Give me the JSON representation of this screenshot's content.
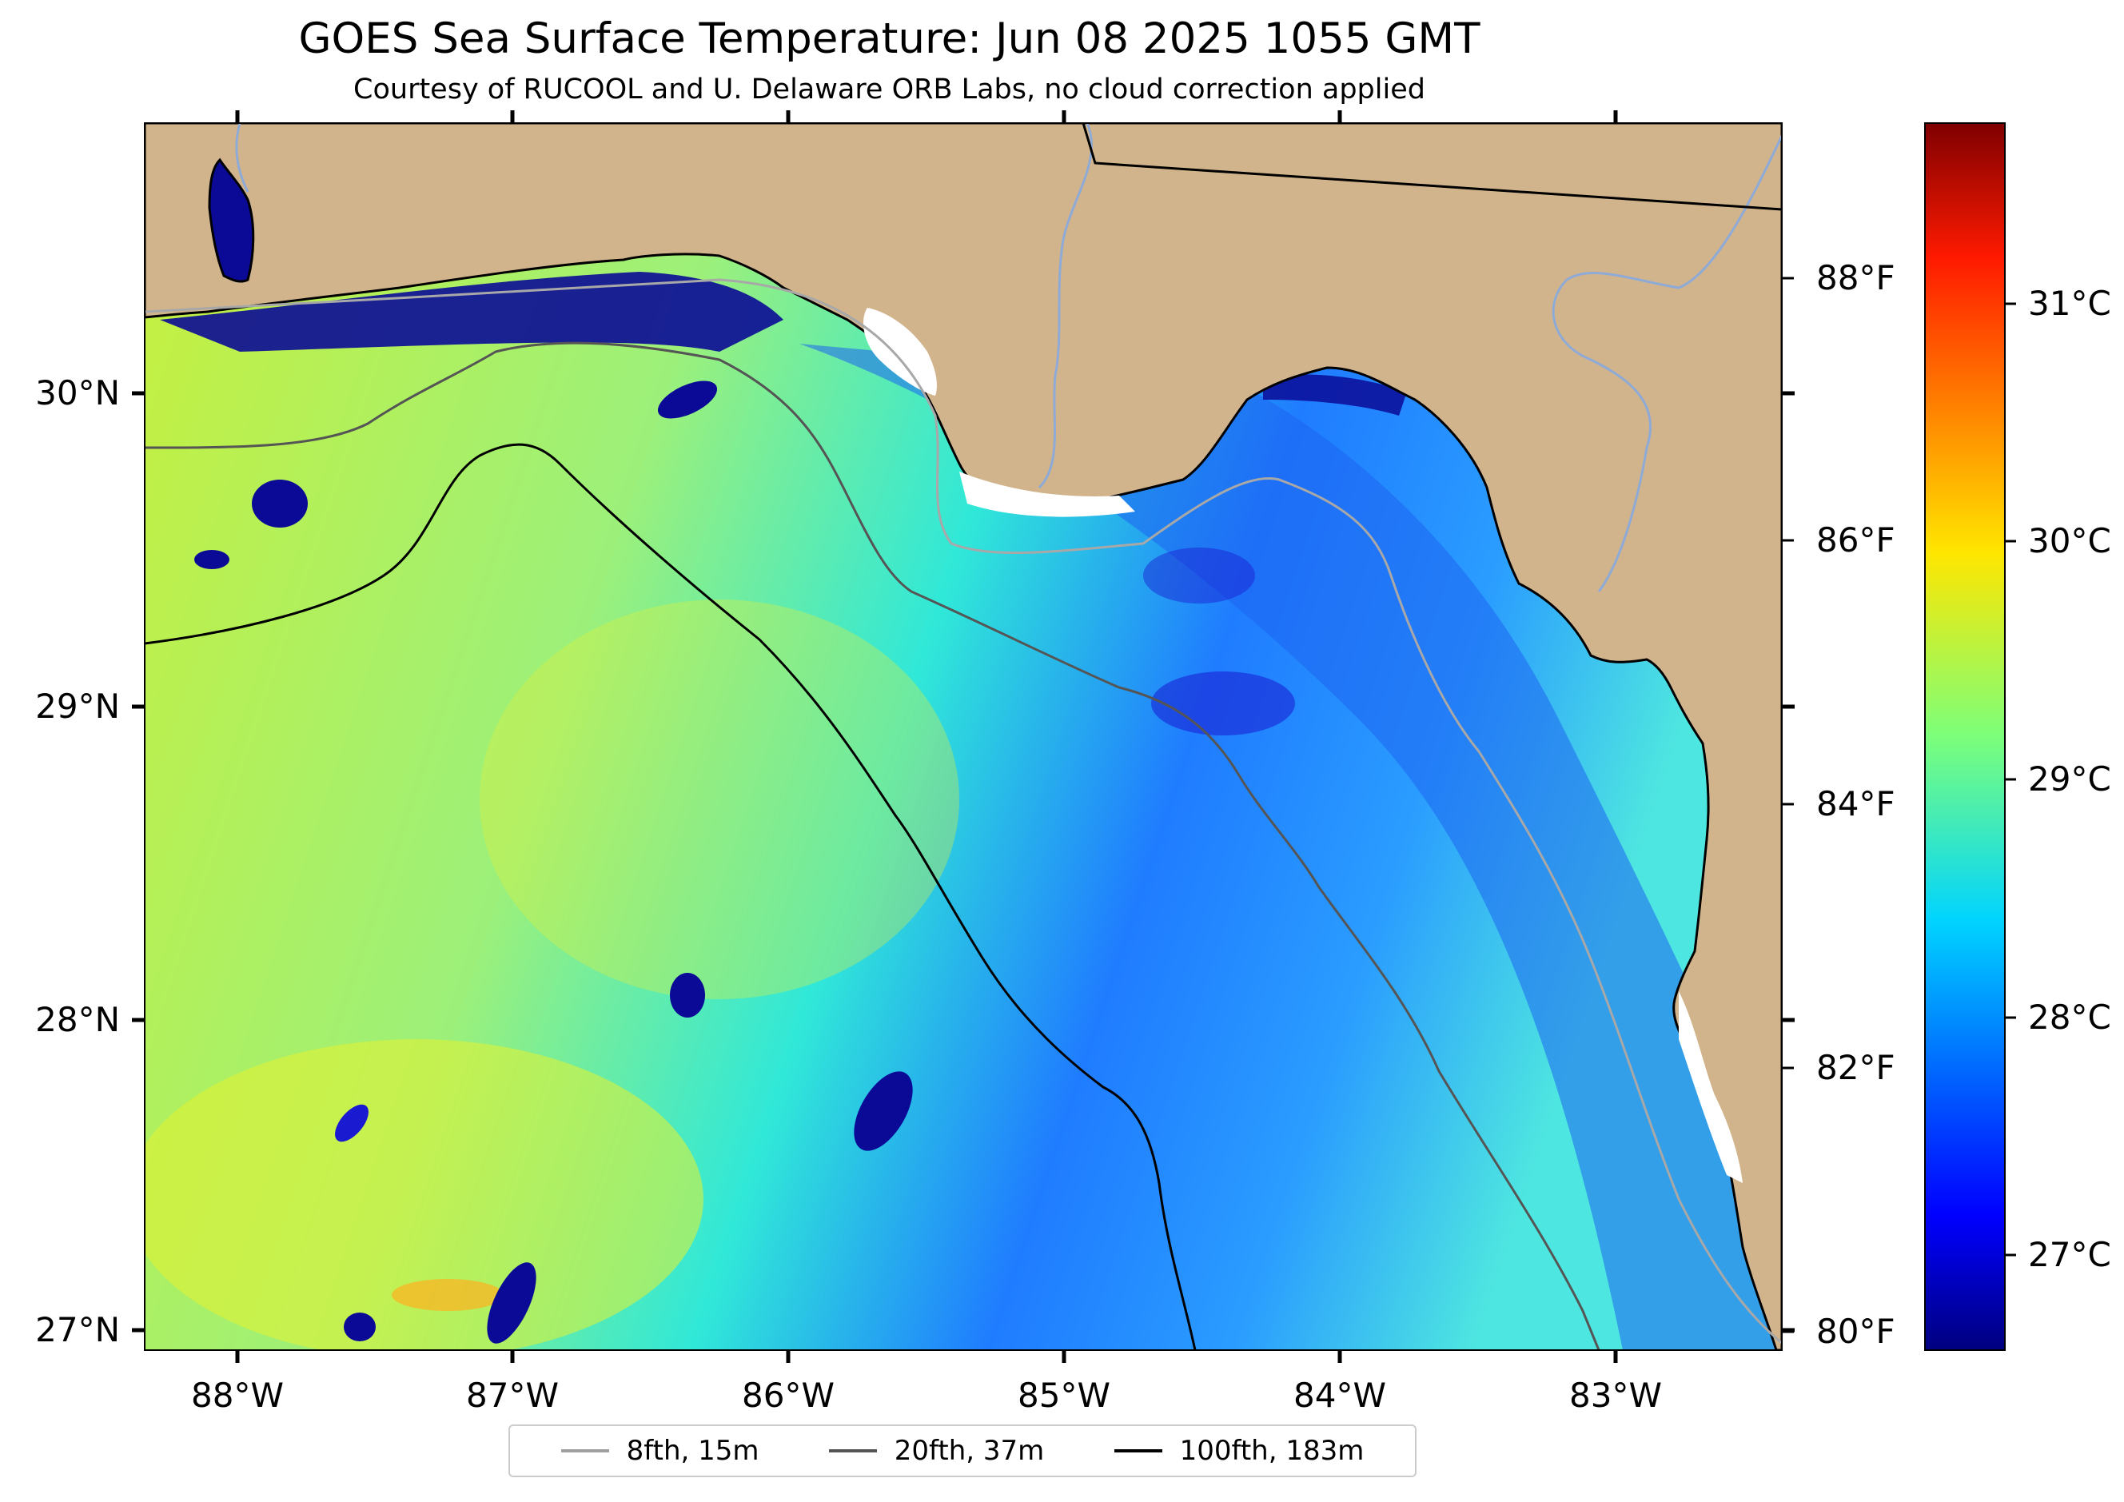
{
  "title": "GOES Sea Surface Temperature: Jun 08 2025 1055 GMT",
  "subtitle": "Courtesy of RUCOOL and U. Delaware ORB Labs, no cloud correction applied",
  "map": {
    "lon_labels": [
      "88°W",
      "87°W",
      "86°W",
      "85°W",
      "84°W",
      "83°W"
    ],
    "lat_labels": [
      "30°N",
      "29°N",
      "28°N",
      "27°N"
    ],
    "fahrenheit_labels": [
      "88°F",
      "86°F",
      "84°F",
      "82°F",
      "80°F"
    ],
    "colors": {
      "land": "#d2b48c",
      "water_warm": "#ccee30",
      "water_mid": "#3ef0c0",
      "water_cool": "#1e78ff",
      "water_cold": "#0a14a0"
    }
  },
  "colorbar": {
    "labels": [
      "31°C",
      "30°C",
      "29°C",
      "28°C",
      "27°C"
    ],
    "colormap": "jet"
  },
  "legend": {
    "items": [
      {
        "label": "8fth, 15m",
        "color": "#a0a0a0"
      },
      {
        "label": "20fth, 37m",
        "color": "#555555"
      },
      {
        "label": "100fth, 183m",
        "color": "#000000"
      }
    ]
  }
}
